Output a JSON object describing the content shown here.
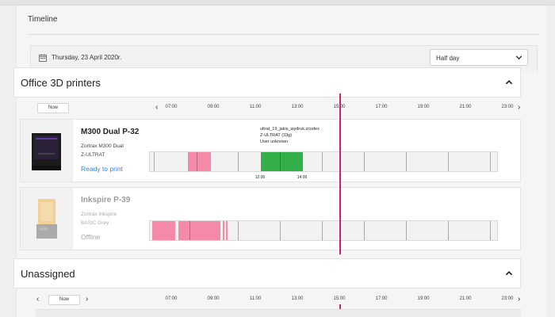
{
  "page": {
    "title": "Timeline"
  },
  "date_bar": {
    "date": "Thursday, 23 April 2020r.",
    "range_select": "Half day"
  },
  "time_ticks": [
    "07:00",
    "09:00",
    "11:00",
    "13:00",
    "15:00",
    "17:00",
    "19:00",
    "21:00",
    "23:00"
  ],
  "colors": {
    "accent_now": "#d41f62",
    "job_printed": "#f48aa7",
    "job_current": "#33b04a",
    "status_ready": "#2f86dd",
    "status_offline": "#888888"
  },
  "sections": [
    {
      "title": "Office 3D printers",
      "now_label": "Now",
      "printers": [
        {
          "name": "M300 Dual P-32",
          "model_line1": "Zortrax M300 Dual",
          "model_line2": "Z-ULTRAT",
          "status": "Ready to print",
          "job": {
            "file": "ultrat_19_jakis_wydruk.zcodex",
            "material": "Z-ULTRAT (33g)",
            "user": "User unknown",
            "start": "12:00",
            "end": "14:00"
          }
        },
        {
          "name": "Inkspire P-39",
          "model_line1": "Zortrax Inkspire",
          "model_line2": "BASIC Grey",
          "status": "Offline"
        }
      ]
    },
    {
      "title": "Unassigned",
      "now_label": "Now"
    }
  ]
}
